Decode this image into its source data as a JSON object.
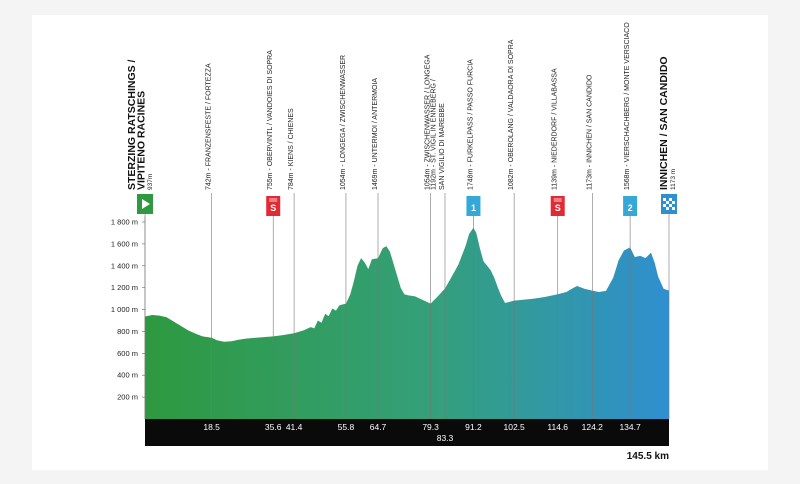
{
  "chart_data": {
    "type": "area",
    "title": "",
    "xlabel": "",
    "ylabel": "",
    "xlim": [
      0,
      145.5
    ],
    "ylim": [
      0,
      1900
    ],
    "yticks": [
      200,
      400,
      600,
      800,
      1000,
      1200,
      1400,
      1600,
      1800
    ],
    "ytick_labels": [
      "200 m",
      "400 m",
      "600 m",
      "800 m",
      "1 000 m",
      "1 200 m",
      "1 400 m",
      "1 600 m",
      "1 800 m"
    ],
    "total_distance_label": "145.5 km",
    "start": {
      "name_line1": "STERZING RATSCHINGS /",
      "name_line2": "VIPITENO RACINES",
      "elevation_label": "937m",
      "icon": "start-flag-icon",
      "color": "#2e9940"
    },
    "finish": {
      "name_line1": "INNICHEN / SAN CANDIDO",
      "elevation_label": "1173 m",
      "icon": "checkered-flag-icon",
      "color": "#2f8fd1"
    },
    "waypoints": [
      {
        "km": 18.5,
        "km_label": "18.5",
        "lines": [
          "742m - FRANZENSFESTE / FORTEZZA"
        ]
      },
      {
        "km": 35.6,
        "km_label": "35.6",
        "lines": [
          "755m - OBERVINTL / VANDOIES DI SOPRA"
        ],
        "badge": "S",
        "badge_type": "sprint"
      },
      {
        "km": 41.4,
        "km_label": "41.4",
        "lines": [
          "784m - KIENS / CHIENES"
        ]
      },
      {
        "km": 55.8,
        "km_label": "55.8",
        "lines": [
          "1054m - LONGEGA / ZWISCHENWASSER"
        ]
      },
      {
        "km": 64.7,
        "km_label": "64.7",
        "lines": [
          "1469m - UNTERMOI / ANTERMOIA"
        ]
      },
      {
        "km": 79.3,
        "km_label": "79.3",
        "lines": [
          "1054m - ZWISCHENWASSER / LONGEGA"
        ]
      },
      {
        "km": 83.3,
        "km_label": "83.3",
        "lines": [
          "1192m - ST. VIGIL IN ENNEBERG /",
          "SAN VIGILIO DI MAREBBE"
        ]
      },
      {
        "km": 91.2,
        "km_label": "91.2",
        "lines": [
          "1748m - FURKELPASS / PASSO FURCIA"
        ],
        "badge": "1",
        "badge_type": "kom"
      },
      {
        "km": 102.5,
        "km_label": "102.5",
        "lines": [
          "1082m - OBEROLANG / VALDAORA DI SOPRA"
        ]
      },
      {
        "km": 114.6,
        "km_label": "114.6",
        "lines": [
          "1139m - NIEDERDORF / VILLABASSA"
        ],
        "badge": "S",
        "badge_type": "sprint"
      },
      {
        "km": 124.2,
        "km_label": "124.2",
        "lines": [
          "1173m - INNICHEN / SAN CANDIDO"
        ]
      },
      {
        "km": 134.7,
        "km_label": "134.7",
        "lines": [
          "1568m - VIERSCHACHBERG / MONTE VERSCIACO"
        ],
        "badge": "2",
        "badge_type": "kom"
      }
    ],
    "profile": [
      [
        0,
        937
      ],
      [
        2,
        950
      ],
      [
        4,
        945
      ],
      [
        6,
        930
      ],
      [
        8,
        890
      ],
      [
        10,
        850
      ],
      [
        12,
        810
      ],
      [
        14,
        780
      ],
      [
        16,
        755
      ],
      [
        18.5,
        742
      ],
      [
        20,
        720
      ],
      [
        22,
        705
      ],
      [
        24,
        710
      ],
      [
        26,
        725
      ],
      [
        28,
        735
      ],
      [
        30,
        740
      ],
      [
        33,
        748
      ],
      [
        35.6,
        755
      ],
      [
        38,
        765
      ],
      [
        41.4,
        784
      ],
      [
        44,
        810
      ],
      [
        46,
        840
      ],
      [
        47,
        830
      ],
      [
        48,
        900
      ],
      [
        49,
        880
      ],
      [
        50,
        960
      ],
      [
        51,
        940
      ],
      [
        52,
        1010
      ],
      [
        53,
        990
      ],
      [
        54,
        1040
      ],
      [
        55.8,
        1054
      ],
      [
        57,
        1140
      ],
      [
        58,
        1260
      ],
      [
        59,
        1400
      ],
      [
        60,
        1470
      ],
      [
        61,
        1430
      ],
      [
        62,
        1370
      ],
      [
        63,
        1460
      ],
      [
        64.7,
        1469
      ],
      [
        66,
        1560
      ],
      [
        67,
        1580
      ],
      [
        68,
        1530
      ],
      [
        69,
        1420
      ],
      [
        70,
        1310
      ],
      [
        71,
        1200
      ],
      [
        72,
        1140
      ],
      [
        73,
        1130
      ],
      [
        75,
        1120
      ],
      [
        77,
        1090
      ],
      [
        79.3,
        1054
      ],
      [
        81,
        1110
      ],
      [
        83.3,
        1192
      ],
      [
        85,
        1290
      ],
      [
        87,
        1410
      ],
      [
        89,
        1580
      ],
      [
        90,
        1690
      ],
      [
        91.2,
        1748
      ],
      [
        92,
        1700
      ],
      [
        93,
        1560
      ],
      [
        94,
        1440
      ],
      [
        95,
        1400
      ],
      [
        96,
        1360
      ],
      [
        97,
        1290
      ],
      [
        98,
        1200
      ],
      [
        99,
        1120
      ],
      [
        100,
        1060
      ],
      [
        102.5,
        1082
      ],
      [
        105,
        1090
      ],
      [
        108,
        1100
      ],
      [
        111,
        1115
      ],
      [
        114.6,
        1139
      ],
      [
        117,
        1160
      ],
      [
        119,
        1200
      ],
      [
        120,
        1215
      ],
      [
        122,
        1190
      ],
      [
        124.2,
        1173
      ],
      [
        126,
        1160
      ],
      [
        128,
        1170
      ],
      [
        130,
        1290
      ],
      [
        131.5,
        1450
      ],
      [
        133,
        1540
      ],
      [
        134.7,
        1568
      ],
      [
        136,
        1480
      ],
      [
        137.5,
        1490
      ],
      [
        139,
        1470
      ],
      [
        140.5,
        1520
      ],
      [
        141.5,
        1430
      ],
      [
        142.5,
        1300
      ],
      [
        144,
        1190
      ],
      [
        145.5,
        1173
      ]
    ],
    "gradient_colors": [
      "#2e9940",
      "#34a07a",
      "#2f8fd1"
    ],
    "badge_colors": {
      "sprint": "#e02b35",
      "kom": "#35a8d8"
    },
    "grid": false,
    "legend": "none"
  }
}
